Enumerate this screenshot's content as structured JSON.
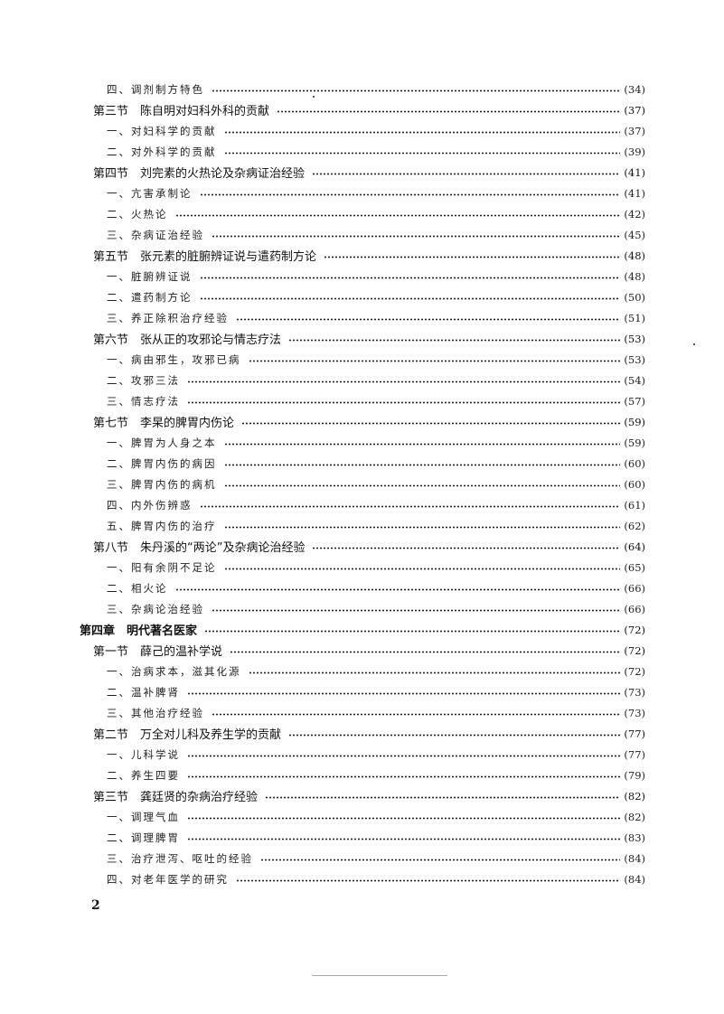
{
  "toc": [
    {
      "level": 3,
      "title": "四、调剂制方特色",
      "page": "(34)"
    },
    {
      "level": 2,
      "title": "第三节　陈自明对妇科外科的贡献",
      "page": "(37)"
    },
    {
      "level": 3,
      "title": "一、对妇科学的贡献",
      "page": "(37)"
    },
    {
      "level": 3,
      "title": "二、对外科学的贡献",
      "page": "(39)"
    },
    {
      "level": 2,
      "title": "第四节　刘完素的火热论及杂病证治经验",
      "page": "(41)"
    },
    {
      "level": 3,
      "title": "一、亢害承制论",
      "page": "(41)"
    },
    {
      "level": 3,
      "title": "二、火热论",
      "page": "(42)"
    },
    {
      "level": 3,
      "title": "三、杂病证治经验",
      "page": "(45)"
    },
    {
      "level": 2,
      "title": "第五节　张元素的脏腑辨证说与遣药制方论",
      "page": "(48)"
    },
    {
      "level": 3,
      "title": "一、脏腑辨证说",
      "page": "(48)"
    },
    {
      "level": 3,
      "title": "二、遣药制方论",
      "page": "(50)"
    },
    {
      "level": 3,
      "title": "三、养正除积治疗经验",
      "page": "(51)"
    },
    {
      "level": 2,
      "title": "第六节　张从正的攻邪论与情志疗法",
      "page": "(53)"
    },
    {
      "level": 3,
      "title": "一、病由邪生，攻邪已病",
      "page": "(53)"
    },
    {
      "level": 3,
      "title": "二、攻邪三法",
      "page": "(54)"
    },
    {
      "level": 3,
      "title": "三、情志疗法",
      "page": "(57)"
    },
    {
      "level": 2,
      "title": "第七节　李杲的脾胃内伤论",
      "page": "(59)"
    },
    {
      "level": 3,
      "title": "一、脾胃为人身之本",
      "page": "(59)"
    },
    {
      "level": 3,
      "title": "二、脾胃内伤的病因",
      "page": "(60)"
    },
    {
      "level": 3,
      "title": "三、脾胃内伤的病机",
      "page": "(60)"
    },
    {
      "level": 3,
      "title": "四、内外伤辨惑",
      "page": "(61)"
    },
    {
      "level": 3,
      "title": "五、脾胃内伤的治疗",
      "page": "(62)"
    },
    {
      "level": 2,
      "title": "第八节　朱丹溪的“两论”及杂病论治经验",
      "page": "(64)"
    },
    {
      "level": 3,
      "title": "一、阳有余阴不足论",
      "page": "(65)"
    },
    {
      "level": 3,
      "title": "二、相火论",
      "page": "(66)"
    },
    {
      "level": 3,
      "title": "三、杂病论治经验",
      "page": "(66)"
    },
    {
      "level": 1,
      "title": "第四章　明代著名医家",
      "page": "(72)"
    },
    {
      "level": 2,
      "title": "第一节　薛己的温补学说",
      "page": "(72)"
    },
    {
      "level": 3,
      "title": "一、治病求本，滋其化源",
      "page": "(72)"
    },
    {
      "level": 3,
      "title": "二、温补脾肾",
      "page": "(73)"
    },
    {
      "level": 3,
      "title": "三、其他治疗经验",
      "page": "(73)"
    },
    {
      "level": 2,
      "title": "第二节　万全对儿科及养生学的贡献",
      "page": "(77)"
    },
    {
      "level": 3,
      "title": "一、儿科学说",
      "page": "(77)"
    },
    {
      "level": 3,
      "title": "二、养生四要",
      "page": "(79)"
    },
    {
      "level": 2,
      "title": "第三节　龚廷贤的杂病治疗经验",
      "page": "(82)"
    },
    {
      "level": 3,
      "title": "一、调理气血",
      "page": "(82)"
    },
    {
      "level": 3,
      "title": "二、调理脾胃",
      "page": "(83)"
    },
    {
      "level": 3,
      "title": "三、治疗泄泻、呕吐的经验",
      "page": "(84)"
    },
    {
      "level": 3,
      "title": "四、对老年医学的研究",
      "page": "(84)"
    }
  ],
  "page_number": "2"
}
